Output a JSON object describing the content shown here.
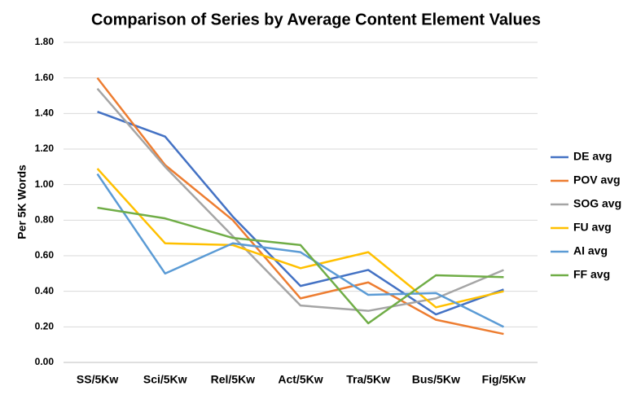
{
  "chart_data": {
    "type": "line",
    "title": "Comparison of Series by Average Content Element Values",
    "y_label": "Per 5K Words",
    "categories": [
      "SS/5Kw",
      "Sci/5Kw",
      "Rel/5Kw",
      "Act/5Kw",
      "Tra/5Kw",
      "Bus/5Kw",
      "Fig/5Kw"
    ],
    "series": [
      {
        "name": "DE avg",
        "color": "#4472c4",
        "values": [
          1.41,
          1.27,
          0.82,
          0.43,
          0.52,
          0.27,
          0.41
        ]
      },
      {
        "name": "POV avg",
        "color": "#ed7d31",
        "values": [
          1.6,
          1.11,
          0.8,
          0.36,
          0.45,
          0.24,
          0.16
        ]
      },
      {
        "name": "SOG avg",
        "color": "#a5a5a5",
        "values": [
          1.54,
          1.1,
          0.71,
          0.32,
          0.29,
          0.36,
          0.52
        ]
      },
      {
        "name": "FU avg",
        "color": "#ffc000",
        "values": [
          1.09,
          0.67,
          0.66,
          0.53,
          0.62,
          0.31,
          0.4
        ]
      },
      {
        "name": "AI avg",
        "color": "#5b9bd5",
        "values": [
          1.06,
          0.5,
          0.67,
          0.62,
          0.38,
          0.39,
          0.2
        ]
      },
      {
        "name": "FF avg",
        "color": "#70ad47",
        "values": [
          0.87,
          0.81,
          0.7,
          0.66,
          0.22,
          0.49,
          0.48
        ]
      }
    ],
    "ylim": [
      0,
      1.8
    ],
    "yticks": [
      {
        "value": 0,
        "label": "0.00"
      },
      {
        "value": 0.2,
        "label": "0.20"
      },
      {
        "value": 0.4,
        "label": "0.40"
      },
      {
        "value": 0.6,
        "label": "0.60"
      },
      {
        "value": 0.8,
        "label": "0.80"
      },
      {
        "value": 1.0,
        "label": "1.00"
      },
      {
        "value": 1.2,
        "label": "1.20"
      },
      {
        "value": 1.4,
        "label": "1.40"
      },
      {
        "value": 1.6,
        "label": "1.60"
      },
      {
        "value": 1.8,
        "label": "1.80"
      }
    ],
    "grid": true,
    "legend": "right"
  }
}
